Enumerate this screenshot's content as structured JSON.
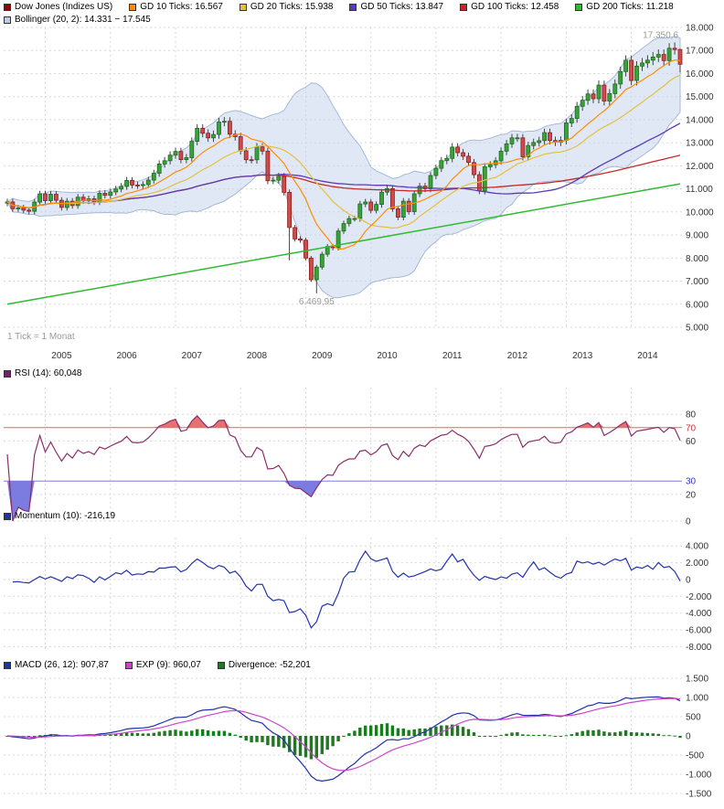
{
  "legend": {
    "main": [
      {
        "label": "Dow Jones (Indizes US)",
        "color": "#990000"
      },
      {
        "label": "GD 10 Ticks: 16.567",
        "color": "#FF8C00"
      },
      {
        "label": "GD 20 Ticks: 15.938",
        "color": "#E3C13D"
      },
      {
        "label": "GD 50 Ticks: 13.847",
        "color": "#5A3BB5"
      },
      {
        "label": "GD 100 Ticks: 12.458",
        "color": "#C62828"
      },
      {
        "label": "GD 200 Ticks: 11.218",
        "color": "#2EBB2E"
      }
    ],
    "bollinger": {
      "label": "Bollinger (20, 2): 14.331 − 17.545",
      "color": "#BCCBE8"
    },
    "rsi": {
      "label": "RSI (14): 60,048",
      "color": "#7A1F66"
    },
    "momentum": {
      "label": "Momentum (10): -216,19",
      "color": "#2233AA"
    },
    "macd": [
      {
        "label": "MACD (26, 12): 907,87",
        "color": "#223399"
      },
      {
        "label": "EXP (9): 960,07",
        "color": "#CC44CC"
      },
      {
        "label": "Divergence: -52,201",
        "color": "#1E7A1E"
      }
    ]
  },
  "chart_data": {
    "type": "candlestick+indicators",
    "title": "Dow Jones (Indizes US)",
    "tick_note": "1 Tick = 1 Monat",
    "start_month": "2004-06",
    "closes": [
      10435,
      10140,
      10174,
      10080,
      10027,
      10428,
      10783,
      10490,
      10766,
      10504,
      10193,
      10467,
      10275,
      10641,
      10482,
      10569,
      10440,
      10806,
      10718,
      10865,
      10993,
      11109,
      11367,
      11168,
      11150,
      11186,
      11381,
      11679,
      12080,
      12222,
      12463,
      12622,
      12269,
      12354,
      13063,
      13628,
      13409,
      13212,
      13358,
      13896,
      13930,
      13372,
      13265,
      12650,
      12266,
      12263,
      12820,
      12638,
      11350,
      11378,
      11544,
      10851,
      9325,
      8829,
      8776,
      8001,
      7063,
      7609,
      8168,
      8500,
      8447,
      9172,
      9496,
      9712,
      9713,
      10345,
      10428,
      10067,
      10325,
      10857,
      11009,
      10137,
      9774,
      10466,
      10015,
      10788,
      11118,
      11006,
      11578,
      11892,
      12226,
      12320,
      12811,
      12570,
      12414,
      12143,
      11614,
      10913,
      11955,
      12046,
      12218,
      12633,
      12952,
      13212,
      13214,
      12393,
      12880,
      13009,
      13091,
      13437,
      13096,
      13026,
      13104,
      13861,
      14054,
      14579,
      14840,
      15116,
      14910,
      15500,
      14810,
      15130,
      15546,
      16086,
      16577,
      15699,
      16322,
      16458,
      16581,
      16717,
      16827,
      16563,
      17098,
      17043,
      16400
    ],
    "high_overrides": {
      "123": 17350.6,
      "124": 17080
    },
    "low_overrides": {
      "52": 7900,
      "57": 6469.95,
      "124": 16050
    },
    "annotations": [
      {
        "text": "17.350,6",
        "anchor_index": 123,
        "value": 17350.6,
        "position": "above"
      },
      {
        "text": "6.469,95",
        "anchor_index": 57,
        "value": 6469.95,
        "position": "below"
      }
    ],
    "year_labels": [
      "2005",
      "2006",
      "2007",
      "2008",
      "2009",
      "2010",
      "2011",
      "2012",
      "2013",
      "2014"
    ],
    "indicator_values": {
      "gd10": 16567,
      "gd20": 15938,
      "gd50": 13847,
      "gd100": 12458,
      "gd200": 11218,
      "bollinger_low": 14331,
      "bollinger_high": 17545,
      "rsi": 60.048,
      "momentum": -216.19,
      "macd": 907.87,
      "exp": 960.07,
      "divergence": -52.201
    },
    "indicators": {
      "gd_periods": [
        10,
        20,
        50,
        100
      ],
      "gd200_anchor": {
        "start": 6000,
        "end": 11218
      },
      "bollinger": {
        "n": 20,
        "k": 2
      },
      "rsi_n": 14,
      "momentum_n": 10,
      "macd": {
        "fast": 12,
        "slow": 26,
        "signal": 9
      }
    },
    "panels": {
      "price": {
        "ylim": [
          5000,
          18000
        ],
        "ticks": [
          {
            "v": 18000,
            "t": "18.000"
          },
          {
            "v": 17000,
            "t": "17.000"
          },
          {
            "v": 16000,
            "t": "16.000"
          },
          {
            "v": 15000,
            "t": "15.000"
          },
          {
            "v": 14000,
            "t": "14.000"
          },
          {
            "v": 13000,
            "t": "13.000"
          },
          {
            "v": 12000,
            "t": "12.000"
          },
          {
            "v": 11000,
            "t": "11.000"
          },
          {
            "v": 10000,
            "t": "10.000"
          },
          {
            "v": 9000,
            "t": "9.000"
          },
          {
            "v": 8000,
            "t": "8.000"
          },
          {
            "v": 7000,
            "t": "7.000"
          },
          {
            "v": 6000,
            "t": "6.000"
          },
          {
            "v": 5000,
            "t": "5.000"
          }
        ]
      },
      "rsi": {
        "ylim": [
          0,
          100
        ],
        "levels": {
          "high": 70,
          "low": 30
        },
        "ticks": [
          {
            "v": 80,
            "t": "80"
          },
          {
            "v": 70,
            "t": "70",
            "color": "#cc3333",
            "line": "#e06666"
          },
          {
            "v": 60,
            "t": "60"
          },
          {
            "v": 30,
            "t": "30",
            "color": "#3333cc",
            "line": "#7b7be0"
          },
          {
            "v": 20,
            "t": "20"
          },
          {
            "v": 0,
            "t": "0"
          }
        ]
      },
      "momentum": {
        "ylim": [
          -8500,
          5000
        ],
        "ticks": [
          {
            "v": 4000,
            "t": "4.000"
          },
          {
            "v": 2000,
            "t": "2.000"
          },
          {
            "v": 0,
            "t": "0"
          },
          {
            "v": -2000,
            "t": "-2.000"
          },
          {
            "v": -4000,
            "t": "-4.000"
          },
          {
            "v": -6000,
            "t": "-6.000"
          },
          {
            "v": -8000,
            "t": "-8.000"
          }
        ]
      },
      "macd": {
        "ylim": [
          -1500,
          1500
        ],
        "ticks": [
          {
            "v": 1500,
            "t": "1.500"
          },
          {
            "v": 1000,
            "t": "1.000"
          },
          {
            "v": 500,
            "t": "500"
          },
          {
            "v": 0,
            "t": "0"
          },
          {
            "v": -500,
            "t": "-500"
          },
          {
            "v": -1000,
            "t": "-1.000"
          },
          {
            "v": -1500,
            "t": "-1.500"
          }
        ]
      }
    },
    "colors": {
      "candle_up": "#3BA23B",
      "candle_up_border": "#1C6B1C",
      "candle_down": "#CF4A4A",
      "candle_down_border": "#8A2020",
      "wick": "#444444",
      "gd10": "#FF8C00",
      "gd20": "#E3C13D",
      "gd50": "#5A3BB5",
      "gd100": "#C62828",
      "gd200": "#2EBB2E",
      "bollinger_fill": "#C9D6EC",
      "bollinger_stroke": "#A5B9D8",
      "rsi_line": "#8B2E6B",
      "rsi_fill_high": "#E87070",
      "rsi_fill_low": "#7B7BE0",
      "momentum_line": "#2233AA",
      "macd_line": "#2233AA",
      "exp_line": "#CC44CC",
      "divergence_bar": "#1E7A1E",
      "grid": "#D8D8D8",
      "axis_text": "#333333",
      "annotation_text": "#999999"
    }
  }
}
